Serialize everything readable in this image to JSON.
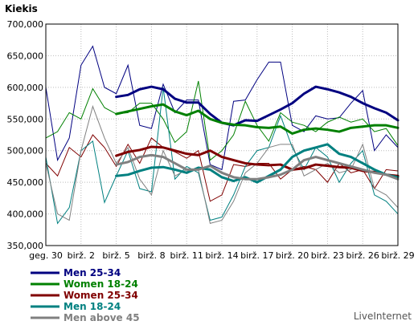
{
  "chart_data": {
    "type": "line",
    "ylabel": "Kiekis",
    "credit": "LiveInternet",
    "ylim": [
      350000,
      700000
    ],
    "yticks": [
      {
        "v": 350000,
        "label": "350,000"
      },
      {
        "v": 400000,
        "label": "400,000"
      },
      {
        "v": 450000,
        "label": "450,000"
      },
      {
        "v": 500000,
        "label": "500,000"
      },
      {
        "v": 550000,
        "label": "550,000"
      },
      {
        "v": 600000,
        "label": "600,000"
      },
      {
        "v": 650000,
        "label": "650,000"
      },
      {
        "v": 700000,
        "label": "700,000"
      }
    ],
    "xticks": [
      {
        "i": 0,
        "label": "geg. 30"
      },
      {
        "i": 3,
        "label": "birž. 2"
      },
      {
        "i": 6,
        "label": "birž. 5"
      },
      {
        "i": 9,
        "label": "birž. 8"
      },
      {
        "i": 12,
        "label": "birž. 11"
      },
      {
        "i": 15,
        "label": "birž. 14"
      },
      {
        "i": 18,
        "label": "birž. 17"
      },
      {
        "i": 21,
        "label": "birž. 20"
      },
      {
        "i": 24,
        "label": "birž. 23"
      },
      {
        "i": 27,
        "label": "birž. 26"
      },
      {
        "i": 30,
        "label": "birž. 29"
      }
    ],
    "x_count": 31,
    "series": [
      {
        "name": "Men 25-34",
        "color": "#000080",
        "values": [
          600000,
          485000,
          520000,
          635000,
          665000,
          600000,
          590000,
          635000,
          540000,
          535000,
          605000,
          560000,
          580000,
          580000,
          478000,
          470000,
          578000,
          580000,
          612000,
          640000,
          640000,
          540000,
          530000,
          555000,
          550000,
          552000,
          575000,
          595000,
          500000,
          525000,
          505000
        ],
        "smooth_start": 6,
        "smooth": [
          585000,
          588000,
          597000,
          601000,
          597000,
          582000,
          576000,
          576000,
          558000,
          544000,
          540000,
          548000,
          547000,
          556000,
          565000,
          575000,
          590000,
          601000,
          597000,
          592000,
          585000,
          575000,
          567000,
          560000,
          548000
        ]
      },
      {
        "name": "Women 18-24",
        "color": "#008000",
        "values": [
          520000,
          530000,
          560000,
          550000,
          598000,
          568000,
          558000,
          560000,
          575000,
          575000,
          550000,
          513000,
          530000,
          610000,
          485000,
          500000,
          525000,
          578000,
          540000,
          515000,
          560000,
          545000,
          540000,
          530000,
          545000,
          553000,
          545000,
          550000,
          530000,
          535000,
          508000
        ],
        "smooth_start": 6,
        "smooth": [
          558000,
          562000,
          566000,
          570000,
          573000,
          562000,
          556000,
          563000,
          550000,
          544000,
          541000,
          540000,
          537000,
          536000,
          538000,
          527000,
          533000,
          535000,
          533000,
          530000,
          536000,
          538000,
          540000,
          540000,
          536000
        ]
      },
      {
        "name": "Women 25-34",
        "color": "#800000",
        "values": [
          480000,
          460000,
          505000,
          490000,
          525000,
          505000,
          475000,
          510000,
          480000,
          520000,
          505000,
          498000,
          488000,
          500000,
          420000,
          430000,
          478000,
          475000,
          480000,
          480000,
          455000,
          470000,
          475000,
          470000,
          450000,
          480000,
          465000,
          470000,
          440000,
          470000,
          468000
        ],
        "smooth_start": 6,
        "smooth": [
          492000,
          498000,
          501000,
          506000,
          505000,
          500000,
          495000,
          493000,
          500000,
          490000,
          485000,
          480000,
          478000,
          477000,
          478000,
          470000,
          472000,
          478000,
          476000,
          474000,
          473000,
          468000,
          466000,
          462000,
          460000
        ]
      },
      {
        "name": "Men 18-24",
        "color": "#008080",
        "values": [
          490000,
          385000,
          410000,
          500000,
          515000,
          418000,
          460000,
          500000,
          440000,
          435000,
          600000,
          455000,
          475000,
          465000,
          390000,
          395000,
          430000,
          475000,
          500000,
          505000,
          555000,
          505000,
          470000,
          505000,
          490000,
          450000,
          480000,
          500000,
          430000,
          420000,
          400000
        ],
        "smooth_start": 6,
        "smooth": [
          460000,
          462000,
          468000,
          473000,
          474000,
          470000,
          465000,
          473000,
          470000,
          458000,
          452000,
          458000,
          450000,
          460000,
          470000,
          490000,
          500000,
          505000,
          510000,
          495000,
          490000,
          480000,
          470000,
          462000,
          458000
        ]
      },
      {
        "name": "Men above 45",
        "color": "#808080",
        "values": [
          480000,
          400000,
          390000,
          500000,
          570000,
          520000,
          480000,
          505000,
          455000,
          430000,
          500000,
          460000,
          470000,
          470000,
          385000,
          390000,
          420000,
          465000,
          480000,
          505000,
          510000,
          510000,
          460000,
          470000,
          480000,
          465000,
          470000,
          510000,
          440000,
          430000,
          410000
        ],
        "smooth_start": 6,
        "smooth": [
          478000,
          482000,
          490000,
          493000,
          490000,
          480000,
          470000,
          470000,
          476000,
          465000,
          458000,
          455000,
          455000,
          458000,
          462000,
          470000,
          485000,
          490000,
          485000,
          480000,
          475000,
          470000,
          465000,
          462000,
          455000
        ]
      }
    ]
  }
}
